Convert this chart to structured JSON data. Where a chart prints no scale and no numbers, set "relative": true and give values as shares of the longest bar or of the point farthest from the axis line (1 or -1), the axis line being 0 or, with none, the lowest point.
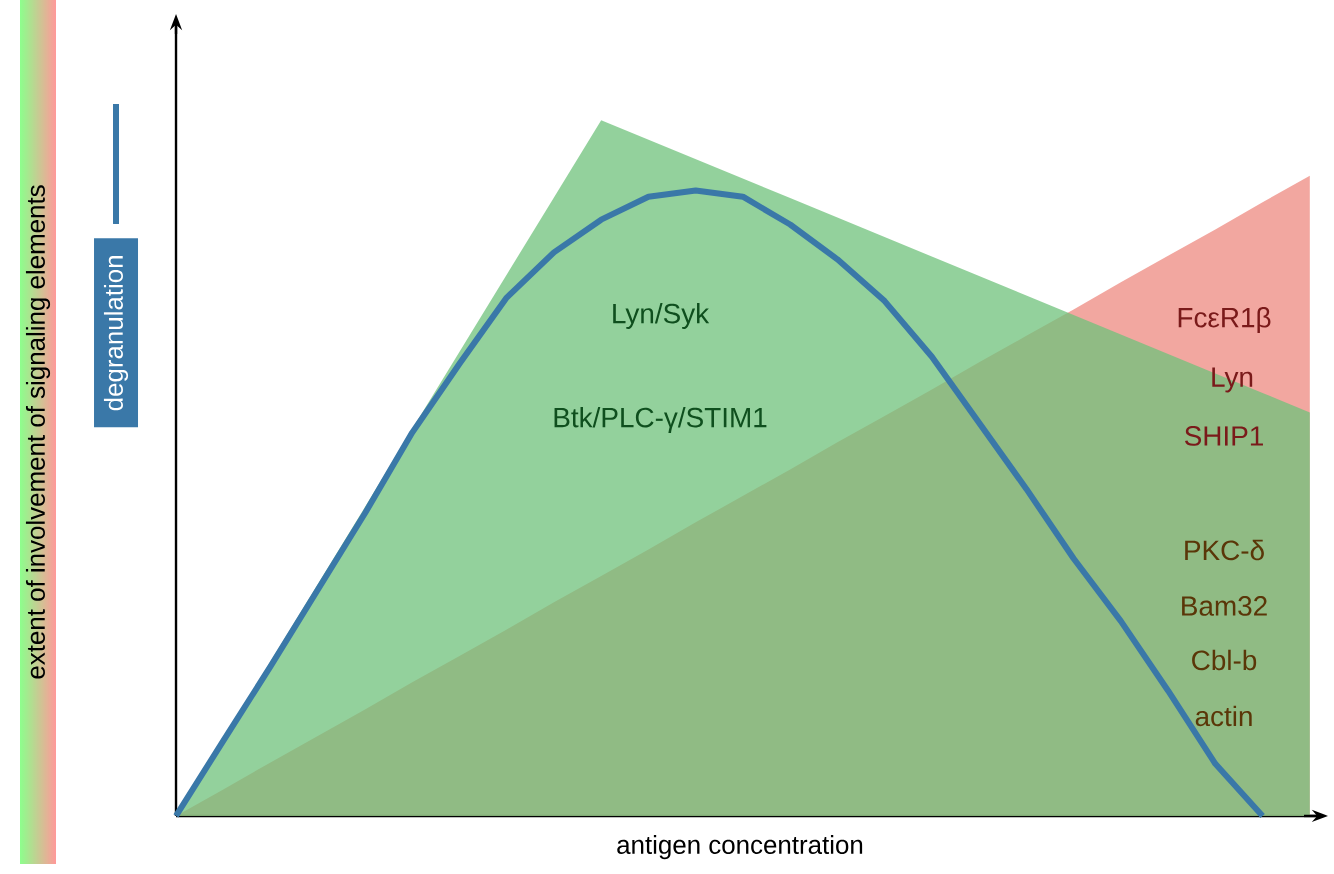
{
  "chart_data": {
    "type": "area",
    "relative": true,
    "xlabel": "antigen concentration",
    "ylabel": "extent of involvement of signaling elements",
    "legend": "left",
    "categories": [
      null,
      null,
      null,
      null,
      null,
      null,
      null,
      null,
      null,
      null,
      null,
      null,
      null,
      null,
      null,
      null,
      null,
      null,
      null,
      null,
      null,
      null,
      null,
      null,
      null
    ],
    "series": [
      {
        "color": "#ee8a80",
        "values": [
          0,
          0.038,
          0.077,
          0.115,
          0.153,
          0.192,
          0.23,
          0.268,
          0.307,
          0.345,
          0.383,
          0.422,
          0.46,
          0.498,
          0.537,
          0.575,
          0.613,
          0.652,
          0.69,
          0.728,
          0.767,
          0.805,
          0.843,
          0.882,
          0.92
        ]
      },
      {
        "color": "#6fc27b",
        "values": [
          0,
          0.111,
          0.222,
          0.333,
          0.444,
          0.556,
          0.667,
          0.778,
          0.889,
          1,
          0.972,
          0.944,
          0.916,
          0.888,
          0.86,
          0.832,
          0.804,
          0.776,
          0.748,
          0.72,
          0.692,
          0.664,
          0.636,
          0.608,
          0.58
        ]
      },
      {
        "type": "line",
        "name": "degranulation",
        "color": "#3a78a8",
        "values": [
          0,
          0.108,
          0.215,
          0.325,
          0.435,
          0.551,
          0.65,
          0.745,
          0.81,
          0.857,
          0.89,
          0.899,
          0.89,
          0.85,
          0.8,
          0.74,
          0.66,
          0.565,
          0.47,
          0.37,
          0.28,
          0.18,
          0.075,
          0,
          null
        ]
      }
    ],
    "annotations": [
      "Lyn/Syk",
      "Btk/PLC-γ/STIM1",
      "FcεR1β",
      "Lyn",
      "SHIP1",
      "PKC-δ",
      "Bam32",
      "Cbl-b",
      "actin"
    ]
  }
}
